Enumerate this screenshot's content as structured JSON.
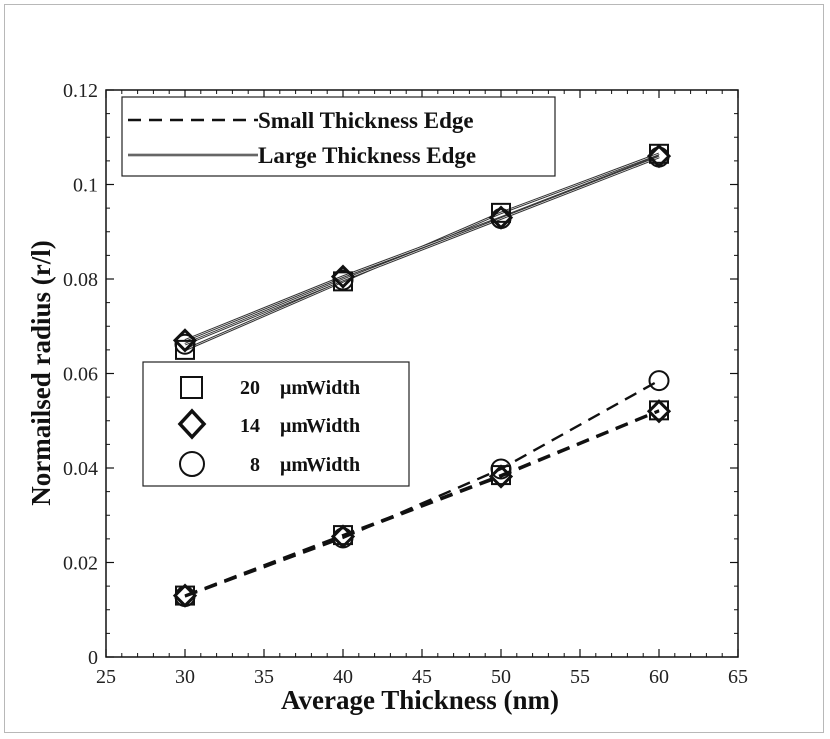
{
  "chart_data": {
    "type": "line",
    "title": "",
    "xlabel": "Average Thickness (nm)",
    "ylabel": "Normailsed radius (r/l)",
    "xlim": [
      25,
      65
    ],
    "ylim": [
      0,
      0.12
    ],
    "xticks": [
      "25",
      "30",
      "35",
      "40",
      "45",
      "50",
      "55",
      "60",
      "65"
    ],
    "yticks": [
      "0",
      "0.02",
      "0.04",
      "0.06",
      "0.08",
      "0.1",
      "0.12"
    ],
    "x": [
      30,
      40,
      50,
      60
    ],
    "line_legend": [
      {
        "label": "Small Thickness Edge",
        "style": "dashed"
      },
      {
        "label": "Large Thickness Edge",
        "style": "solid"
      }
    ],
    "marker_legend": [
      {
        "number": "20",
        "unit": "μm",
        "suffix": "Width",
        "marker": "square"
      },
      {
        "number": "14",
        "unit": "μm",
        "suffix": "Width",
        "marker": "diamond"
      },
      {
        "number": "8",
        "unit": "μm",
        "suffix": "Width",
        "marker": "circle"
      }
    ],
    "series": [
      {
        "name": "Large Thickness Edge, 20 μm Width",
        "edge": "large",
        "marker": "square",
        "values": [
          0.065,
          0.0795,
          0.094,
          0.1065
        ]
      },
      {
        "name": "Large Thickness Edge, 14 μm Width",
        "edge": "large",
        "marker": "diamond",
        "values": [
          0.067,
          0.0805,
          0.093,
          0.106
        ]
      },
      {
        "name": "Large Thickness Edge, 8 μm Width",
        "edge": "large",
        "marker": "circle",
        "values": [
          0.0662,
          0.0798,
          0.0928,
          0.1058
        ]
      },
      {
        "name": "Small Thickness Edge, 20 μm Width",
        "edge": "small",
        "marker": "square",
        "values": [
          0.013,
          0.0258,
          0.0385,
          0.0522
        ]
      },
      {
        "name": "Small Thickness Edge, 14 μm Width",
        "edge": "small",
        "marker": "diamond",
        "values": [
          0.013,
          0.0255,
          0.0382,
          0.052
        ]
      },
      {
        "name": "Small Thickness Edge, 8 μm Width",
        "edge": "small",
        "marker": "circle",
        "values": [
          0.0128,
          0.0252,
          0.0398,
          0.0585
        ]
      }
    ]
  }
}
